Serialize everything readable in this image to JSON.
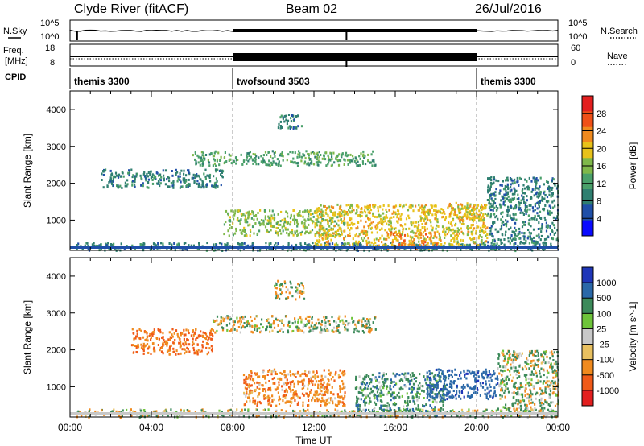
{
  "header": {
    "station": "Clyde River (fitACF)",
    "beam": "Beam 02",
    "date": "26/Jul/2016"
  },
  "noise_panel": {
    "left_label": "N.Sky",
    "left_ticks": [
      "10^5",
      "10^0"
    ],
    "right_ticks": [
      "10^5",
      "10^0"
    ],
    "right_label": "N.Search"
  },
  "freq_panel": {
    "left_label_line1": "Freq.",
    "left_label_line2": "[MHz]",
    "left_ticks": [
      "18",
      "8"
    ],
    "right_ticks": [
      "60",
      "0"
    ],
    "right_label": "Nave"
  },
  "cpid": {
    "label": "CPID",
    "segments": [
      {
        "name": "themis 3300",
        "start_hour": 0,
        "end_hour": 8
      },
      {
        "name": "twofsound 3503",
        "start_hour": 8,
        "end_hour": 20
      },
      {
        "name": "themis 3300",
        "start_hour": 20,
        "end_hour": 24
      }
    ]
  },
  "chart_data": [
    {
      "type": "heatmap",
      "quantity": "power",
      "xlabel": "Time UT",
      "ylabel": "Slant Range [km]",
      "xlim": [
        0,
        24
      ],
      "ylim": [
        180,
        4500
      ],
      "x_ticks": [
        "00:00",
        "04:00",
        "08:00",
        "12:00",
        "16:00",
        "20:00",
        "00:00"
      ],
      "y_ticks": [
        1000,
        2000,
        3000,
        4000
      ],
      "colorbar": {
        "label": "Power [dB]",
        "range": [
          0,
          32
        ],
        "ticks": [
          4,
          8,
          12,
          16,
          20,
          24,
          28
        ],
        "colors": [
          "#0a0aff",
          "#1f4fa8",
          "#2f7f70",
          "#4aa06a",
          "#7fb84a",
          "#e8c21a",
          "#f08a1e",
          "#f05018",
          "#e31f1f"
        ]
      },
      "echo_regions": [
        {
          "t0": 0.3,
          "t1": 24,
          "r0": 200,
          "r1": 420,
          "level": 8
        },
        {
          "t0": 1.5,
          "t1": 7.5,
          "r0": 1900,
          "r1": 2400,
          "level": 8
        },
        {
          "t0": 6.0,
          "t1": 15.0,
          "r0": 2500,
          "r1": 2900,
          "level": 10
        },
        {
          "t0": 10.2,
          "t1": 11.4,
          "r0": 3500,
          "r1": 3900,
          "level": 8
        },
        {
          "t0": 7.5,
          "t1": 13.5,
          "r0": 600,
          "r1": 1300,
          "level": 14
        },
        {
          "t0": 12.0,
          "t1": 20.5,
          "r0": 300,
          "r1": 1450,
          "level": 18
        },
        {
          "t0": 15.5,
          "t1": 18.0,
          "r0": 250,
          "r1": 700,
          "level": 24
        },
        {
          "t0": 18.5,
          "t1": 20.5,
          "r0": 1000,
          "r1": 1500,
          "level": 20
        },
        {
          "t0": 20.5,
          "t1": 24,
          "r0": 400,
          "r1": 2200,
          "level": 8
        }
      ]
    },
    {
      "type": "heatmap",
      "quantity": "velocity",
      "xlabel": "Time UT",
      "ylabel": "Slant Range [km]",
      "xlim": [
        0,
        24
      ],
      "ylim": [
        180,
        4500
      ],
      "x_ticks": [
        "00:00",
        "04:00",
        "08:00",
        "12:00",
        "16:00",
        "20:00",
        "00:00"
      ],
      "y_ticks": [
        1000,
        2000,
        3000,
        4000
      ],
      "colorbar": {
        "label": "Velocity [m s^-1]",
        "range": [
          -1200,
          1200
        ],
        "ticks": [
          "1000",
          "500",
          "100",
          "25",
          "-25",
          "-100",
          "-500",
          "-1000"
        ],
        "colors": [
          "#1f36b8",
          "#2a68a8",
          "#3c8a5a",
          "#6ec43a",
          "#c8c8c8",
          "#e8c060",
          "#f08a1e",
          "#f05a18",
          "#e31f1f"
        ]
      },
      "echo_regions": [
        {
          "t0": 0.3,
          "t1": 24,
          "r0": 200,
          "r1": 420,
          "velocity": 25
        },
        {
          "t0": 3.0,
          "t1": 7.0,
          "r0": 1900,
          "r1": 2600,
          "velocity": -300
        },
        {
          "t0": 7.0,
          "t1": 15.0,
          "r0": 2500,
          "r1": 2950,
          "velocity": 0
        },
        {
          "t0": 10.0,
          "t1": 11.5,
          "r0": 3400,
          "r1": 3900,
          "velocity": 0
        },
        {
          "t0": 8.5,
          "t1": 13.5,
          "r0": 500,
          "r1": 1500,
          "velocity": -200
        },
        {
          "t0": 14.0,
          "t1": 18.5,
          "r0": 250,
          "r1": 1400,
          "velocity": 200
        },
        {
          "t0": 17.5,
          "t1": 21.0,
          "r0": 700,
          "r1": 1500,
          "velocity": 600
        },
        {
          "t0": 21.0,
          "t1": 24,
          "r0": 300,
          "r1": 2000,
          "velocity": 50
        }
      ]
    }
  ]
}
